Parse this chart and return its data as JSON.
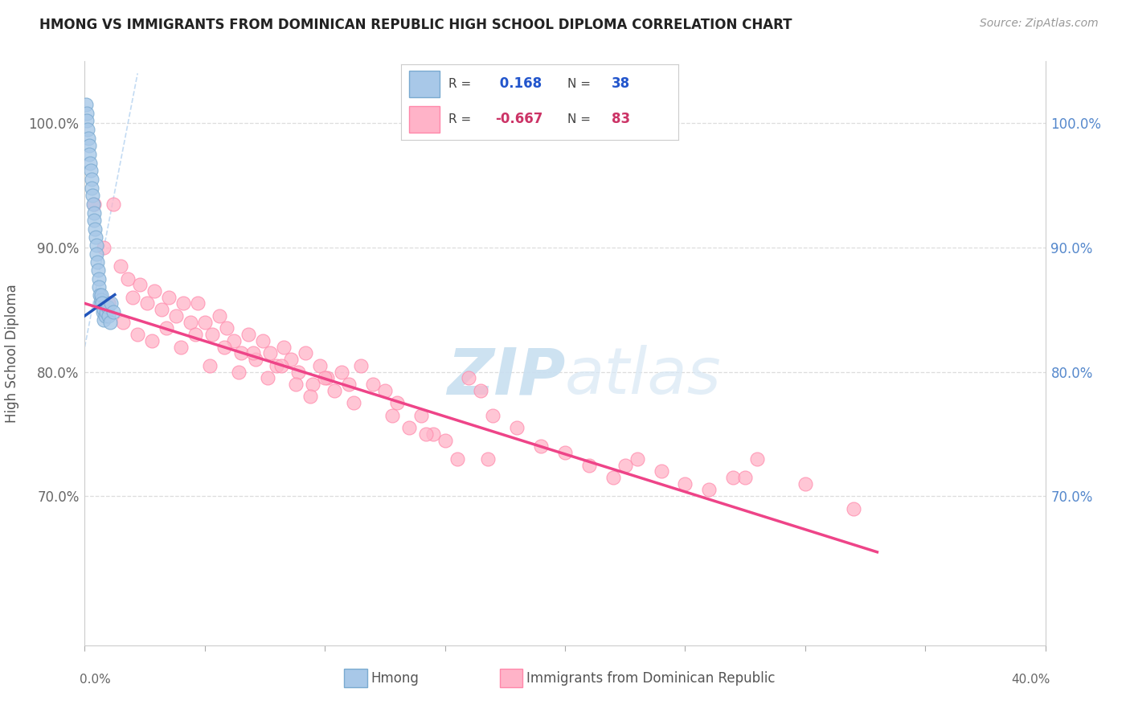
{
  "title": "HMONG VS IMMIGRANTS FROM DOMINICAN REPUBLIC HIGH SCHOOL DIPLOMA CORRELATION CHART",
  "source": "Source: ZipAtlas.com",
  "ylabel": "High School Diploma",
  "xmin": 0.0,
  "xmax": 40.0,
  "ymin": 58.0,
  "ymax": 105.0,
  "yticks": [
    70.0,
    80.0,
    90.0,
    100.0
  ],
  "hmong_R": 0.168,
  "hmong_N": 38,
  "dr_R": -0.667,
  "dr_N": 83,
  "hmong_color": "#a8c8e8",
  "hmong_edge_color": "#7aaad0",
  "hmong_line_color": "#2255bb",
  "dr_color": "#ffb3c8",
  "dr_edge_color": "#ff88aa",
  "dr_line_color": "#ee4488",
  "diag_color": "#99bbdd",
  "background_color": "#ffffff",
  "grid_color": "#dddddd",
  "title_color": "#222222",
  "source_color": "#999999",
  "tick_color_left": "#666666",
  "tick_color_right": "#5588cc",
  "hmong_x": [
    0.05,
    0.08,
    0.1,
    0.12,
    0.15,
    0.18,
    0.2,
    0.22,
    0.25,
    0.28,
    0.3,
    0.32,
    0.35,
    0.38,
    0.4,
    0.42,
    0.45,
    0.48,
    0.5,
    0.52,
    0.55,
    0.58,
    0.6,
    0.62,
    0.65,
    0.68,
    0.7,
    0.72,
    0.75,
    0.78,
    0.8,
    0.85,
    0.9,
    0.95,
    1.0,
    1.05,
    1.1,
    1.2
  ],
  "hmong_y": [
    101.5,
    100.8,
    100.2,
    99.5,
    98.8,
    98.2,
    97.5,
    96.8,
    96.2,
    95.5,
    94.8,
    94.2,
    93.5,
    92.8,
    92.2,
    91.5,
    90.8,
    90.2,
    89.5,
    88.8,
    88.2,
    87.5,
    86.8,
    86.2,
    85.5,
    85.8,
    86.2,
    85.5,
    84.8,
    84.2,
    85.0,
    84.5,
    84.8,
    85.2,
    84.5,
    84.0,
    85.5,
    84.8
  ],
  "dr_x": [
    0.4,
    0.8,
    1.2,
    1.5,
    1.8,
    2.0,
    2.3,
    2.6,
    2.9,
    3.2,
    3.5,
    3.8,
    4.1,
    4.4,
    4.7,
    5.0,
    5.3,
    5.6,
    5.9,
    6.2,
    6.5,
    6.8,
    7.1,
    7.4,
    7.7,
    8.0,
    8.3,
    8.6,
    8.9,
    9.2,
    9.5,
    9.8,
    10.1,
    10.4,
    10.7,
    11.0,
    11.5,
    12.0,
    12.5,
    13.0,
    13.5,
    14.0,
    14.5,
    15.0,
    15.5,
    16.0,
    16.5,
    17.0,
    18.0,
    19.0,
    20.0,
    21.0,
    22.0,
    23.0,
    24.0,
    25.0,
    26.0,
    27.0,
    28.0,
    30.0,
    32.0,
    1.0,
    1.6,
    2.2,
    2.8,
    3.4,
    4.0,
    4.6,
    5.2,
    5.8,
    6.4,
    7.0,
    7.6,
    8.2,
    8.8,
    9.4,
    10.0,
    11.2,
    12.8,
    14.2,
    16.8,
    22.5,
    27.5
  ],
  "dr_y": [
    93.5,
    90.0,
    93.5,
    88.5,
    87.5,
    86.0,
    87.0,
    85.5,
    86.5,
    85.0,
    86.0,
    84.5,
    85.5,
    84.0,
    85.5,
    84.0,
    83.0,
    84.5,
    83.5,
    82.5,
    81.5,
    83.0,
    81.0,
    82.5,
    81.5,
    80.5,
    82.0,
    81.0,
    80.0,
    81.5,
    79.0,
    80.5,
    79.5,
    78.5,
    80.0,
    79.0,
    80.5,
    79.0,
    78.5,
    77.5,
    75.5,
    76.5,
    75.0,
    74.5,
    73.0,
    79.5,
    78.5,
    76.5,
    75.5,
    74.0,
    73.5,
    72.5,
    71.5,
    73.0,
    72.0,
    71.0,
    70.5,
    71.5,
    73.0,
    71.0,
    69.0,
    85.5,
    84.0,
    83.0,
    82.5,
    83.5,
    82.0,
    83.0,
    80.5,
    82.0,
    80.0,
    81.5,
    79.5,
    80.5,
    79.0,
    78.0,
    79.5,
    77.5,
    76.5,
    75.0,
    73.0,
    72.5,
    71.5
  ],
  "hmong_line_x": [
    0.0,
    1.25
  ],
  "hmong_line_y": [
    84.5,
    86.2
  ],
  "dr_line_x": [
    0.0,
    33.0
  ],
  "dr_line_y": [
    85.5,
    65.5
  ]
}
